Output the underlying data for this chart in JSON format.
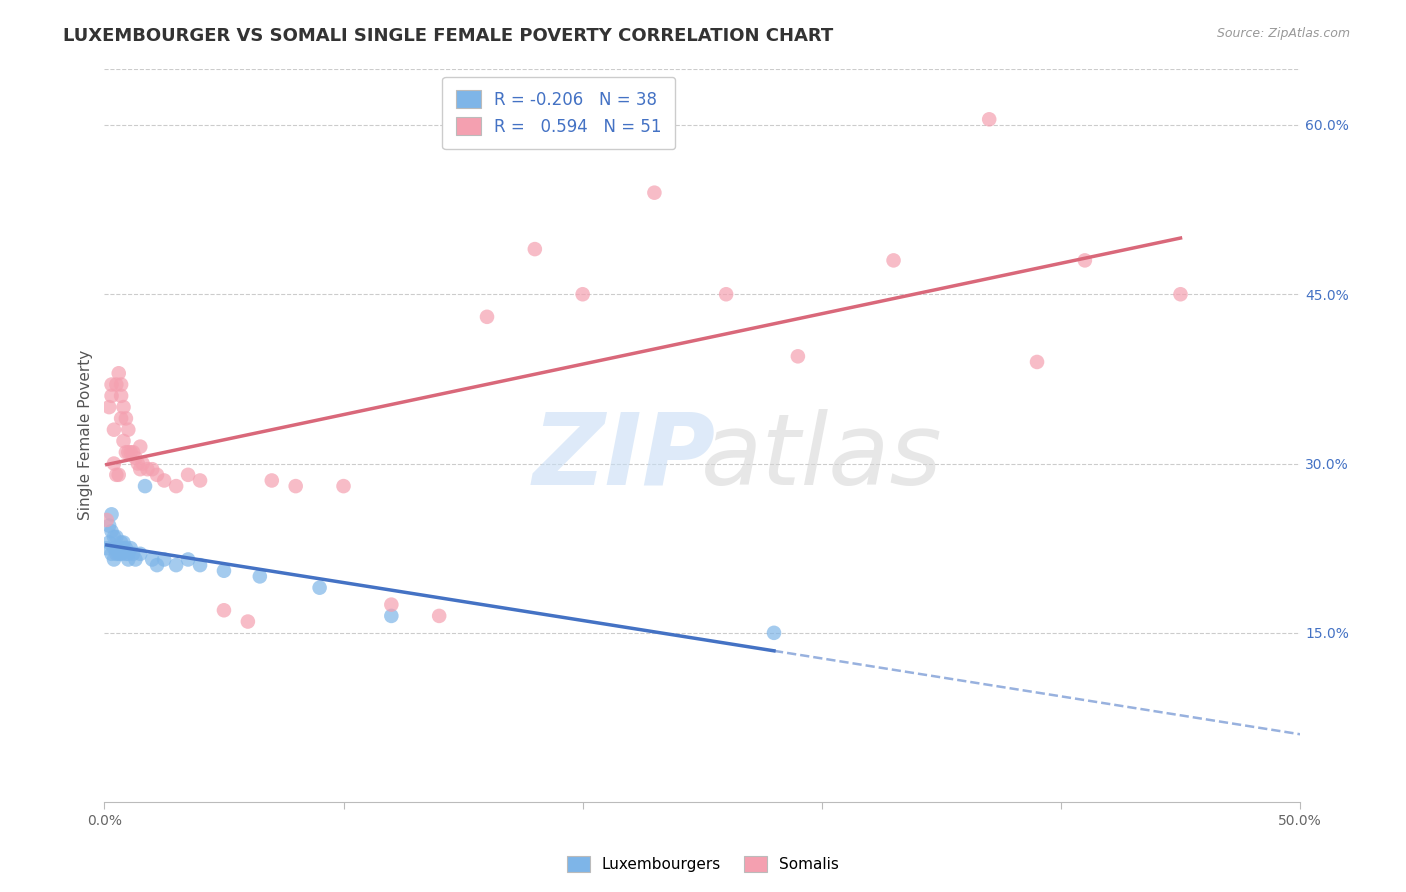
{
  "title": "LUXEMBOURGER VS SOMALI SINGLE FEMALE POVERTY CORRELATION CHART",
  "source_text": "Source: ZipAtlas.com",
  "ylabel": "Single Female Poverty",
  "xlim": [
    0.0,
    0.5
  ],
  "ylim": [
    0.0,
    0.65
  ],
  "xticks": [
    0.0,
    0.1,
    0.2,
    0.3,
    0.4,
    0.5
  ],
  "xticklabels": [
    "0.0%",
    "",
    "",
    "",
    "",
    "50.0%"
  ],
  "yticks_right": [
    0.15,
    0.3,
    0.45,
    0.6
  ],
  "ytick_right_labels": [
    "15.0%",
    "30.0%",
    "45.0%",
    "60.0%"
  ],
  "legend_R_lux": "-0.206",
  "legend_N_lux": "38",
  "legend_R_som": "0.594",
  "legend_N_som": "51",
  "lux_color": "#7EB5E8",
  "som_color": "#F4A0B0",
  "lux_line_color": "#4472C4",
  "som_line_color": "#D9687A",
  "lux_x": [
    0.001,
    0.002,
    0.002,
    0.003,
    0.003,
    0.003,
    0.004,
    0.004,
    0.004,
    0.005,
    0.005,
    0.005,
    0.006,
    0.006,
    0.007,
    0.007,
    0.008,
    0.008,
    0.009,
    0.009,
    0.01,
    0.01,
    0.011,
    0.012,
    0.013,
    0.015,
    0.017,
    0.02,
    0.022,
    0.025,
    0.03,
    0.035,
    0.04,
    0.05,
    0.065,
    0.09,
    0.12,
    0.28
  ],
  "lux_y": [
    0.225,
    0.245,
    0.23,
    0.22,
    0.24,
    0.255,
    0.215,
    0.225,
    0.235,
    0.22,
    0.225,
    0.235,
    0.22,
    0.225,
    0.22,
    0.23,
    0.225,
    0.23,
    0.22,
    0.225,
    0.215,
    0.22,
    0.225,
    0.22,
    0.215,
    0.22,
    0.28,
    0.215,
    0.21,
    0.215,
    0.21,
    0.215,
    0.21,
    0.205,
    0.2,
    0.19,
    0.165,
    0.15
  ],
  "som_x": [
    0.001,
    0.002,
    0.003,
    0.003,
    0.004,
    0.004,
    0.005,
    0.005,
    0.006,
    0.006,
    0.007,
    0.007,
    0.007,
    0.008,
    0.008,
    0.009,
    0.009,
    0.01,
    0.01,
    0.011,
    0.012,
    0.013,
    0.014,
    0.015,
    0.015,
    0.016,
    0.018,
    0.02,
    0.022,
    0.025,
    0.03,
    0.035,
    0.04,
    0.05,
    0.06,
    0.07,
    0.08,
    0.1,
    0.12,
    0.14,
    0.16,
    0.18,
    0.2,
    0.23,
    0.26,
    0.29,
    0.33,
    0.37,
    0.39,
    0.41,
    0.45
  ],
  "som_y": [
    0.25,
    0.35,
    0.36,
    0.37,
    0.3,
    0.33,
    0.37,
    0.29,
    0.38,
    0.29,
    0.36,
    0.34,
    0.37,
    0.32,
    0.35,
    0.31,
    0.34,
    0.31,
    0.33,
    0.31,
    0.31,
    0.305,
    0.3,
    0.295,
    0.315,
    0.3,
    0.295,
    0.295,
    0.29,
    0.285,
    0.28,
    0.29,
    0.285,
    0.17,
    0.16,
    0.285,
    0.28,
    0.28,
    0.175,
    0.165,
    0.43,
    0.49,
    0.45,
    0.54,
    0.45,
    0.395,
    0.48,
    0.605,
    0.39,
    0.48,
    0.45
  ],
  "title_fontsize": 13,
  "axis_label_fontsize": 11,
  "tick_fontsize": 10,
  "legend_fontsize": 12
}
